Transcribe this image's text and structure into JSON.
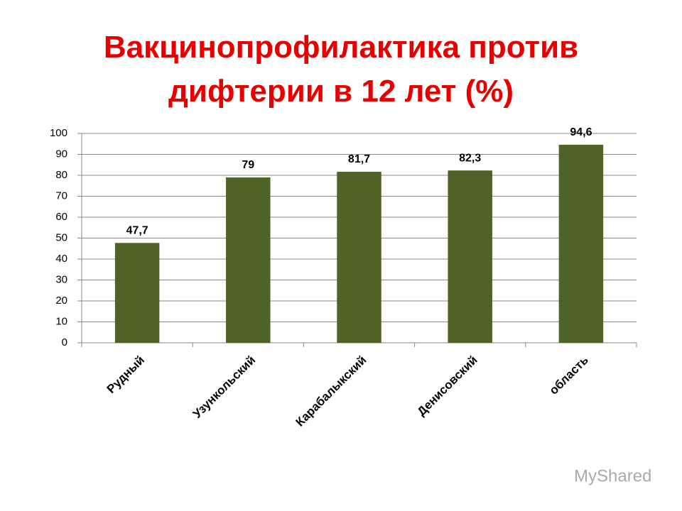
{
  "chart_data": {
    "type": "bar",
    "title": "Вакцинопрофилактика против дифтерии в 12 лет (%)",
    "categories": [
      "Рудный",
      "Узункольский",
      "Карабалыкский",
      "Денисовский",
      "область"
    ],
    "values": [
      47.7,
      79,
      81.7,
      82.3,
      94.6
    ],
    "value_labels": [
      "47,7",
      "79",
      "81,7",
      "82,3",
      "94,6"
    ],
    "color": "#4f6228",
    "ylim": [
      0,
      100
    ],
    "yticks": [
      0,
      10,
      20,
      30,
      40,
      50,
      60,
      70,
      80,
      90,
      100
    ],
    "grid": true
  },
  "watermark": "MyShared"
}
